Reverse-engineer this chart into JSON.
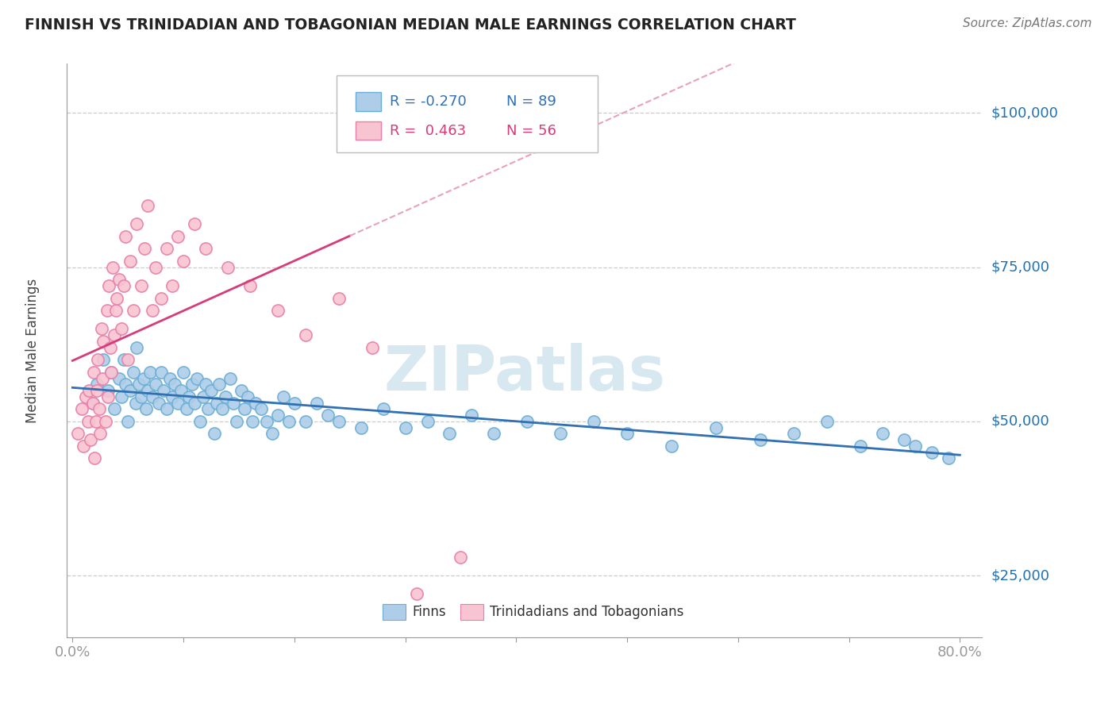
{
  "title": "FINNISH VS TRINIDADIAN AND TOBAGONIAN MEDIAN MALE EARNINGS CORRELATION CHART",
  "source_text": "Source: ZipAtlas.com",
  "ylabel": "Median Male Earnings",
  "watermark": "ZIPatlas",
  "xlim": [
    -0.005,
    0.82
  ],
  "ylim": [
    15000,
    108000
  ],
  "xticks": [
    0.0,
    0.1,
    0.2,
    0.3,
    0.4,
    0.5,
    0.6,
    0.7,
    0.8
  ],
  "xticklabels": [
    "0.0%",
    "",
    "",
    "",
    "",
    "",
    "",
    "",
    "80.0%"
  ],
  "yticks": [
    25000,
    50000,
    75000,
    100000
  ],
  "yticklabels": [
    "$25,000",
    "$50,000",
    "$75,000",
    "$100,000"
  ],
  "blue_color": "#aecde8",
  "blue_edge_color": "#6aaed6",
  "pink_color": "#f9c4d2",
  "pink_edge_color": "#e87fa8",
  "blue_line_color": "#3070b3",
  "pink_line_color": "#d63b7a",
  "pink_dash_color": "#e8a0be",
  "axis_color": "#2171b5",
  "title_color": "#222222",
  "grid_color": "#cccccc",
  "background_color": "#ffffff",
  "legend_box_color": "#ffffff",
  "legend_border_color": "#bbbbbb",
  "finns_x": [
    0.018,
    0.022,
    0.028,
    0.032,
    0.035,
    0.038,
    0.042,
    0.044,
    0.046,
    0.048,
    0.05,
    0.052,
    0.055,
    0.057,
    0.058,
    0.06,
    0.062,
    0.064,
    0.066,
    0.068,
    0.07,
    0.072,
    0.075,
    0.078,
    0.08,
    0.082,
    0.085,
    0.088,
    0.09,
    0.092,
    0.095,
    0.098,
    0.1,
    0.103,
    0.105,
    0.108,
    0.11,
    0.112,
    0.115,
    0.118,
    0.12,
    0.122,
    0.125,
    0.128,
    0.13,
    0.132,
    0.135,
    0.138,
    0.142,
    0.145,
    0.148,
    0.152,
    0.155,
    0.158,
    0.162,
    0.165,
    0.17,
    0.175,
    0.18,
    0.185,
    0.19,
    0.195,
    0.2,
    0.21,
    0.22,
    0.23,
    0.24,
    0.26,
    0.28,
    0.3,
    0.32,
    0.34,
    0.36,
    0.38,
    0.41,
    0.44,
    0.47,
    0.5,
    0.54,
    0.58,
    0.62,
    0.65,
    0.68,
    0.71,
    0.73,
    0.75,
    0.76,
    0.775,
    0.79
  ],
  "finns_y": [
    53000,
    56000,
    60000,
    55000,
    58000,
    52000,
    57000,
    54000,
    60000,
    56000,
    50000,
    55000,
    58000,
    53000,
    62000,
    56000,
    54000,
    57000,
    52000,
    55000,
    58000,
    54000,
    56000,
    53000,
    58000,
    55000,
    52000,
    57000,
    54000,
    56000,
    53000,
    55000,
    58000,
    52000,
    54000,
    56000,
    53000,
    57000,
    50000,
    54000,
    56000,
    52000,
    55000,
    48000,
    53000,
    56000,
    52000,
    54000,
    57000,
    53000,
    50000,
    55000,
    52000,
    54000,
    50000,
    53000,
    52000,
    50000,
    48000,
    51000,
    54000,
    50000,
    53000,
    50000,
    53000,
    51000,
    50000,
    49000,
    52000,
    49000,
    50000,
    48000,
    51000,
    48000,
    50000,
    48000,
    50000,
    48000,
    46000,
    49000,
    47000,
    48000,
    50000,
    46000,
    48000,
    47000,
    46000,
    45000,
    44000
  ],
  "trini_x": [
    0.005,
    0.008,
    0.01,
    0.012,
    0.014,
    0.015,
    0.016,
    0.018,
    0.019,
    0.02,
    0.021,
    0.022,
    0.023,
    0.024,
    0.025,
    0.026,
    0.027,
    0.028,
    0.03,
    0.031,
    0.032,
    0.033,
    0.034,
    0.035,
    0.036,
    0.038,
    0.039,
    0.04,
    0.042,
    0.044,
    0.046,
    0.048,
    0.05,
    0.052,
    0.055,
    0.058,
    0.062,
    0.065,
    0.068,
    0.072,
    0.075,
    0.08,
    0.085,
    0.09,
    0.095,
    0.1,
    0.11,
    0.12,
    0.14,
    0.16,
    0.185,
    0.21,
    0.24,
    0.27,
    0.31,
    0.35
  ],
  "trini_y": [
    48000,
    52000,
    46000,
    54000,
    50000,
    55000,
    47000,
    53000,
    58000,
    44000,
    50000,
    55000,
    60000,
    52000,
    48000,
    65000,
    57000,
    63000,
    50000,
    68000,
    54000,
    72000,
    62000,
    58000,
    75000,
    64000,
    68000,
    70000,
    73000,
    65000,
    72000,
    80000,
    60000,
    76000,
    68000,
    82000,
    72000,
    78000,
    85000,
    68000,
    75000,
    70000,
    78000,
    72000,
    80000,
    76000,
    82000,
    78000,
    75000,
    72000,
    68000,
    64000,
    70000,
    62000,
    22000,
    28000
  ]
}
